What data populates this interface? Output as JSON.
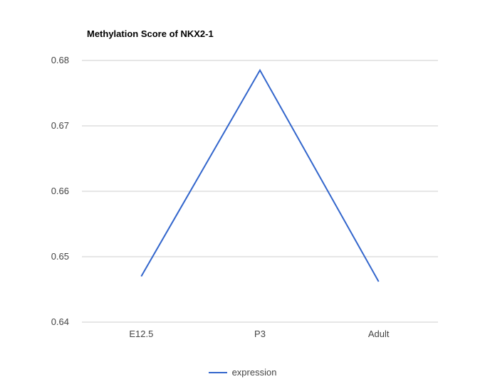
{
  "page": {
    "background": "#ffffff"
  },
  "chart_data": {
    "type": "line",
    "title": "Methylation Score of NKX2-1",
    "categories": [
      "E12.5",
      "P3",
      "Adult"
    ],
    "series": [
      {
        "name": "expression",
        "values": [
          0.647,
          0.6785,
          0.6462
        ],
        "color": "#3366cc"
      }
    ],
    "xlabel": "",
    "ylabel": "",
    "ylim": [
      0.64,
      0.68
    ],
    "yticks": [
      "0.64",
      "0.65",
      "0.66",
      "0.67",
      "0.68"
    ],
    "grid": true,
    "gridline_color": "#cccccc",
    "legend_position": "bottom"
  }
}
